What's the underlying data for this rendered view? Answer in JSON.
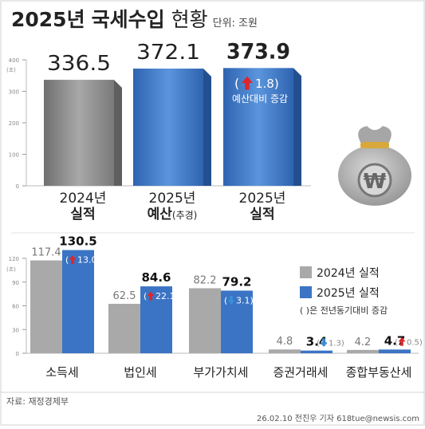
{
  "header": {
    "title_year": "2025년",
    "title_bold": "국세수입",
    "title_light": "현황",
    "unit": "단위: 조원"
  },
  "chart_data": [
    {
      "type": "bar",
      "categories": [
        "2024년 실적",
        "2025년 예산(추경)",
        "2025년 실적"
      ],
      "category_lines": [
        {
          "top": "2024년",
          "bottom": "실적",
          "sub": ""
        },
        {
          "top": "2025년",
          "bottom": "예산",
          "sub": "(추경)"
        },
        {
          "top": "2025년",
          "bottom": "실적",
          "sub": ""
        }
      ],
      "values": [
        336.5,
        372.1,
        373.9
      ],
      "value_labels": [
        "336.5",
        "372.1",
        "373.9"
      ],
      "annotation": {
        "arrow": "up",
        "value": "1.8",
        "text": "예산대비 증감"
      },
      "y_axis_unit": "(조)",
      "ylim": [
        0,
        400
      ],
      "yticks": [
        "0",
        "100",
        "200",
        "300",
        "400"
      ],
      "colors": [
        "#8c8c8c",
        "#3b74c4",
        "#3b74c4"
      ]
    },
    {
      "type": "bar",
      "categories": [
        "소득세",
        "법인세",
        "부가가치세",
        "증권거래세",
        "종합부동산세"
      ],
      "series": [
        {
          "name": "2024년 실적",
          "values": [
            117.4,
            62.5,
            82.2,
            4.8,
            4.2
          ],
          "labels": [
            "117.4",
            "62.5",
            "82.2",
            "4.8",
            "4.2"
          ],
          "color": "#a9a9a9"
        },
        {
          "name": "2025년 실적",
          "values": [
            130.5,
            84.6,
            79.2,
            3.4,
            4.7
          ],
          "labels": [
            "130.5",
            "84.6",
            "79.2",
            "3.4",
            "4.7"
          ],
          "color": "#3b74c4"
        }
      ],
      "changes": [
        {
          "dir": "up",
          "value": "13.0"
        },
        {
          "dir": "up",
          "value": "22.1"
        },
        {
          "dir": "down",
          "value": "3.1"
        },
        {
          "dir": "down",
          "value": "1.3"
        },
        {
          "dir": "up",
          "value": "0.5"
        }
      ],
      "legend_note": "( )은 전년동기대비 증감",
      "y_axis_unit": "(조)",
      "ylim": [
        0,
        120
      ],
      "yticks": [
        "0",
        "30",
        "60",
        "90",
        "120"
      ]
    }
  ],
  "footer": {
    "source": "자료: 재정경제부",
    "credit": "26.02.10 전진우 기자 618tue@newsis.com"
  },
  "icons": {
    "money_bag": "money-bag-icon",
    "up": "red-up-arrow",
    "down": "blue-down-arrow"
  },
  "colors": {
    "up_arrow": "#e0252a",
    "down_arrow": "#3b8fd9",
    "frame": "#cfcfcf"
  }
}
